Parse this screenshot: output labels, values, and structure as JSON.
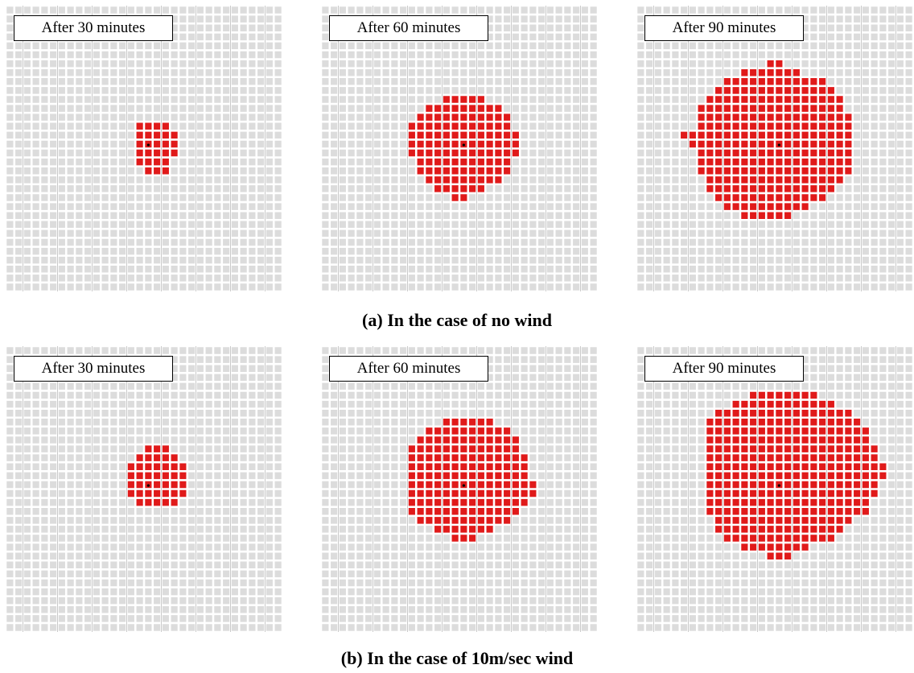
{
  "colors": {
    "grid_background": "#dcdcdc",
    "grid_line": "#ffffff",
    "grid_accent": "#a8a8a8",
    "burned_cell": "#e01a1a",
    "ignition_point": "#000000"
  },
  "grid": {
    "columns": 32,
    "rows": 32
  },
  "rows": [
    {
      "caption": "(a) In the case of no wind",
      "panels": [
        {
          "label": "After 30 minutes",
          "burned_rows": [
            {
              "row": 13,
              "from": 15,
              "to": 18
            },
            {
              "row": 14,
              "from": 15,
              "to": 19
            },
            {
              "row": 15,
              "from": 15,
              "to": 19
            },
            {
              "row": 16,
              "from": 15,
              "to": 19
            },
            {
              "row": 17,
              "from": 15,
              "to": 18
            },
            {
              "row": 18,
              "from": 16,
              "to": 18
            }
          ]
        },
        {
          "label": "After 60 minutes",
          "burned_rows": [
            {
              "row": 10,
              "from": 14,
              "to": 18
            },
            {
              "row": 11,
              "from": 12,
              "to": 20
            },
            {
              "row": 12,
              "from": 11,
              "to": 21
            },
            {
              "row": 13,
              "from": 10,
              "to": 21
            },
            {
              "row": 14,
              "from": 10,
              "to": 22
            },
            {
              "row": 15,
              "from": 10,
              "to": 22
            },
            {
              "row": 16,
              "from": 10,
              "to": 22
            },
            {
              "row": 17,
              "from": 11,
              "to": 21
            },
            {
              "row": 18,
              "from": 11,
              "to": 21
            },
            {
              "row": 19,
              "from": 12,
              "to": 20
            },
            {
              "row": 20,
              "from": 13,
              "to": 18
            },
            {
              "row": 21,
              "from": 15,
              "to": 16
            }
          ]
        },
        {
          "label": "After 90 minutes",
          "burned_rows": [
            {
              "row": 6,
              "from": 15,
              "to": 16
            },
            {
              "row": 7,
              "from": 12,
              "to": 18
            },
            {
              "row": 8,
              "from": 10,
              "to": 21
            },
            {
              "row": 9,
              "from": 9,
              "to": 22
            },
            {
              "row": 10,
              "from": 8,
              "to": 23
            },
            {
              "row": 11,
              "from": 7,
              "to": 23
            },
            {
              "row": 12,
              "from": 7,
              "to": 24
            },
            {
              "row": 13,
              "from": 7,
              "to": 24
            },
            {
              "row": 14,
              "from": 5,
              "to": 24
            },
            {
              "row": 15,
              "from": 6,
              "to": 24
            },
            {
              "row": 16,
              "from": 7,
              "to": 24
            },
            {
              "row": 17,
              "from": 7,
              "to": 24
            },
            {
              "row": 18,
              "from": 7,
              "to": 24
            },
            {
              "row": 19,
              "from": 8,
              "to": 23
            },
            {
              "row": 20,
              "from": 8,
              "to": 22
            },
            {
              "row": 21,
              "from": 9,
              "to": 21
            },
            {
              "row": 22,
              "from": 10,
              "to": 19
            },
            {
              "row": 23,
              "from": 12,
              "to": 17
            }
          ]
        }
      ]
    },
    {
      "caption": "(b) In the case of 10m/sec wind",
      "panels": [
        {
          "label": "After 30 minutes",
          "burned_rows": [
            {
              "row": 11,
              "from": 16,
              "to": 18
            },
            {
              "row": 12,
              "from": 15,
              "to": 19
            },
            {
              "row": 13,
              "from": 14,
              "to": 20
            },
            {
              "row": 14,
              "from": 14,
              "to": 20
            },
            {
              "row": 15,
              "from": 14,
              "to": 20
            },
            {
              "row": 16,
              "from": 14,
              "to": 20
            },
            {
              "row": 17,
              "from": 15,
              "to": 19
            }
          ]
        },
        {
          "label": "After 60 minutes",
          "burned_rows": [
            {
              "row": 8,
              "from": 14,
              "to": 19
            },
            {
              "row": 9,
              "from": 12,
              "to": 21
            },
            {
              "row": 10,
              "from": 11,
              "to": 22
            },
            {
              "row": 11,
              "from": 10,
              "to": 22
            },
            {
              "row": 12,
              "from": 10,
              "to": 23
            },
            {
              "row": 13,
              "from": 10,
              "to": 23
            },
            {
              "row": 14,
              "from": 10,
              "to": 23
            },
            {
              "row": 15,
              "from": 10,
              "to": 24
            },
            {
              "row": 16,
              "from": 10,
              "to": 24
            },
            {
              "row": 17,
              "from": 10,
              "to": 23
            },
            {
              "row": 18,
              "from": 10,
              "to": 22
            },
            {
              "row": 19,
              "from": 11,
              "to": 21
            },
            {
              "row": 20,
              "from": 13,
              "to": 19
            },
            {
              "row": 21,
              "from": 15,
              "to": 17
            }
          ]
        },
        {
          "label": "After 90 minutes",
          "burned_rows": [
            {
              "row": 5,
              "from": 13,
              "to": 20
            },
            {
              "row": 6,
              "from": 11,
              "to": 22
            },
            {
              "row": 7,
              "from": 9,
              "to": 24
            },
            {
              "row": 8,
              "from": 8,
              "to": 25
            },
            {
              "row": 9,
              "from": 8,
              "to": 26
            },
            {
              "row": 10,
              "from": 8,
              "to": 26
            },
            {
              "row": 11,
              "from": 8,
              "to": 27
            },
            {
              "row": 12,
              "from": 8,
              "to": 27
            },
            {
              "row": 13,
              "from": 8,
              "to": 28
            },
            {
              "row": 14,
              "from": 8,
              "to": 28
            },
            {
              "row": 15,
              "from": 8,
              "to": 27
            },
            {
              "row": 16,
              "from": 8,
              "to": 27
            },
            {
              "row": 17,
              "from": 8,
              "to": 26
            },
            {
              "row": 18,
              "from": 8,
              "to": 26
            },
            {
              "row": 19,
              "from": 9,
              "to": 24
            },
            {
              "row": 20,
              "from": 9,
              "to": 23
            },
            {
              "row": 21,
              "from": 10,
              "to": 22
            },
            {
              "row": 22,
              "from": 12,
              "to": 19
            },
            {
              "row": 23,
              "from": 15,
              "to": 17
            }
          ]
        }
      ]
    }
  ]
}
